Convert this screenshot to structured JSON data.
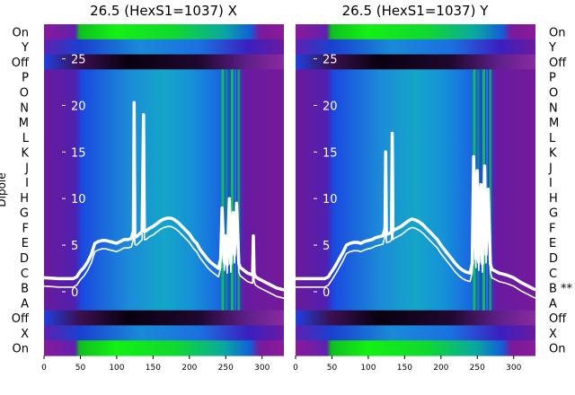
{
  "chart_data": [
    {
      "type": "heatmap",
      "title": "26.5 (HexS1=1037) X",
      "ylabel": "Dipole",
      "row_labels": [
        "On",
        "Y",
        "Off",
        "P",
        "O",
        "N",
        "M",
        "L",
        "K",
        "J",
        "I",
        "H",
        "G",
        "F",
        "E",
        "D",
        "C",
        "B",
        "A",
        "Off",
        "X",
        "On"
      ],
      "x_ticks": [
        0,
        50,
        100,
        150,
        200,
        250,
        300
      ],
      "xlim": [
        0,
        330
      ],
      "overlay_y_ticks": [
        25,
        20,
        15,
        10,
        5,
        0
      ],
      "overlay_ylim": [
        -4,
        28
      ],
      "overlay_series": [
        {
          "x": [
            0,
            20,
            40,
            45,
            50,
            55,
            60,
            65,
            70,
            75,
            80,
            85,
            90,
            95,
            100,
            105,
            110,
            115,
            120,
            123,
            124,
            125,
            127,
            130,
            135,
            136,
            137,
            138,
            140,
            145,
            150,
            155,
            160,
            165,
            170,
            175,
            180,
            185,
            190,
            195,
            200,
            205,
            210,
            215,
            220,
            225,
            230,
            235,
            240,
            243,
            245,
            248,
            250,
            252,
            255,
            257,
            260,
            262,
            265,
            268,
            270,
            275,
            280,
            287,
            288,
            289,
            291,
            295,
            300,
            310,
            320,
            330
          ],
          "y": [
            1.5,
            1.4,
            1.4,
            1.6,
            2.2,
            2.6,
            3.2,
            4.0,
            5.2,
            5.4,
            5.5,
            5.5,
            5.4,
            5.3,
            5.2,
            5.4,
            5.6,
            5.6,
            5.7,
            6.5,
            20.3,
            6.0,
            5.9,
            6.1,
            6.5,
            13.0,
            19.0,
            6.5,
            6.5,
            6.8,
            7.0,
            7.3,
            7.6,
            7.8,
            7.9,
            7.9,
            7.7,
            7.4,
            7.0,
            6.6,
            6.2,
            5.6,
            5.2,
            4.5,
            4.0,
            3.5,
            3.1,
            2.8,
            2.5,
            3.5,
            9.0,
            3.2,
            6.0,
            2.9,
            10.0,
            3.0,
            8.5,
            4.0,
            9.5,
            3.0,
            2.6,
            2.3,
            2.0,
            1.8,
            6.0,
            2.0,
            1.6,
            1.4,
            1.2,
            0.8,
            0.4,
            0.2
          ]
        }
      ]
    },
    {
      "type": "heatmap",
      "title": "26.5 (HexS1=1037) Y",
      "row_labels": [
        "On",
        "Y",
        "Off",
        "P",
        "O",
        "N",
        "M",
        "L",
        "K",
        "J",
        "I",
        "H",
        "G",
        "F",
        "E",
        "D",
        "C",
        "B **",
        "A",
        "Off",
        "X",
        "On"
      ],
      "x_ticks": [
        0,
        50,
        100,
        150,
        200,
        250,
        300
      ],
      "xlim": [
        0,
        330
      ],
      "overlay_y_ticks": [
        25,
        20,
        15,
        10,
        5,
        0
      ],
      "overlay_ylim": [
        -4,
        28
      ],
      "overlay_series": [
        {
          "x": [
            0,
            20,
            40,
            45,
            50,
            55,
            60,
            65,
            70,
            75,
            80,
            85,
            90,
            95,
            100,
            105,
            110,
            115,
            120,
            123,
            124,
            125,
            127,
            130,
            132,
            133,
            134,
            135,
            140,
            145,
            150,
            155,
            160,
            165,
            170,
            175,
            180,
            185,
            190,
            195,
            200,
            205,
            210,
            215,
            220,
            225,
            230,
            235,
            240,
            243,
            245,
            248,
            250,
            252,
            255,
            257,
            260,
            262,
            265,
            268,
            270,
            275,
            280,
            290,
            300,
            310,
            320,
            330
          ],
          "y": [
            1.4,
            1.4,
            1.4,
            1.6,
            2.2,
            2.8,
            3.5,
            4.2,
            5.0,
            5.2,
            5.3,
            5.3,
            5.2,
            5.4,
            5.5,
            5.6,
            5.8,
            5.9,
            6.0,
            6.8,
            15.0,
            6.2,
            6.2,
            6.3,
            6.5,
            17.0,
            6.5,
            6.6,
            6.8,
            7.0,
            7.3,
            7.6,
            7.8,
            7.7,
            7.5,
            7.2,
            6.8,
            6.4,
            6.0,
            5.6,
            5.0,
            4.5,
            4.0,
            3.5,
            3.0,
            2.6,
            2.3,
            2.1,
            2.0,
            3.0,
            14.5,
            3.5,
            13.0,
            3.2,
            11.5,
            3.0,
            13.5,
            4.0,
            11.0,
            3.0,
            2.4,
            2.2,
            2.0,
            1.8,
            1.5,
            1.0,
            0.6,
            0.2
          ]
        }
      ]
    }
  ]
}
